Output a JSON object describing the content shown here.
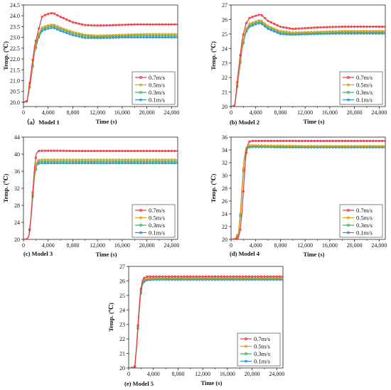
{
  "figure": {
    "series_meta": [
      {
        "name": "0.7m/s",
        "color": "#e8373d",
        "marker": "circle"
      },
      {
        "name": "0.5m/s",
        "color": "#d4a017",
        "marker": "circle"
      },
      {
        "name": "0.3m/s",
        "color": "#3fae63",
        "marker": "circle"
      },
      {
        "name": "0.1m/s",
        "color": "#2b8bd8",
        "marker": "circle"
      }
    ]
  },
  "chart_data": [
    {
      "type": "line",
      "panel_label": "（a）Model 1",
      "xlabel": "Time (s)",
      "ylabel": "Temp. (℃)",
      "xlim": [
        0,
        25000
      ],
      "ylim": [
        19.8,
        24.5
      ],
      "xticks": [
        "0",
        "4,000",
        "8,000",
        "12,000",
        "16,000",
        "20,000",
        "24,000"
      ],
      "yticks": [
        "20.0",
        "20.5",
        "21.0",
        "21.5",
        "22.0",
        "22.5",
        "23.0",
        "23.5",
        "24.0",
        "24.5"
      ],
      "legend": "bottom-right",
      "series": [
        {
          "name": "0.7m/s",
          "x": [
            0,
            600,
            1200,
            1800,
            2400,
            3000,
            3600,
            4200,
            4800,
            6000,
            8000,
            10000,
            12000,
            14000,
            16000,
            18000,
            20000,
            22000,
            24000,
            25000
          ],
          "values": [
            20.0,
            20.05,
            21.3,
            22.6,
            23.3,
            23.95,
            24.05,
            24.1,
            24.13,
            23.95,
            23.7,
            23.57,
            23.55,
            23.56,
            23.58,
            23.6,
            23.6,
            23.6,
            23.6,
            23.6
          ]
        },
        {
          "name": "0.5m/s",
          "x": [
            0,
            600,
            1200,
            1800,
            2400,
            3000,
            3600,
            4200,
            4800,
            6000,
            8000,
            10000,
            12000,
            14000,
            16000,
            18000,
            20000,
            22000,
            24000,
            25000
          ],
          "values": [
            20.0,
            20.05,
            21.1,
            22.4,
            23.1,
            23.45,
            23.52,
            23.57,
            23.6,
            23.45,
            23.25,
            23.12,
            23.08,
            23.1,
            23.12,
            23.14,
            23.15,
            23.15,
            23.15,
            23.15
          ]
        },
        {
          "name": "0.3m/s",
          "x": [
            0,
            600,
            1200,
            1800,
            2400,
            3000,
            3600,
            4200,
            4800,
            6000,
            8000,
            10000,
            12000,
            14000,
            16000,
            18000,
            20000,
            22000,
            24000,
            25000
          ],
          "values": [
            20.0,
            20.05,
            21.05,
            22.35,
            23.05,
            23.38,
            23.45,
            23.5,
            23.53,
            23.38,
            23.18,
            23.06,
            23.03,
            23.05,
            23.06,
            23.08,
            23.08,
            23.08,
            23.08,
            23.08
          ]
        },
        {
          "name": "0.1m/s",
          "x": [
            0,
            600,
            1200,
            1800,
            2400,
            3000,
            3600,
            4200,
            4800,
            6000,
            8000,
            10000,
            12000,
            14000,
            16000,
            18000,
            20000,
            22000,
            24000,
            25000
          ],
          "values": [
            20.0,
            20.05,
            21.0,
            22.3,
            22.95,
            23.3,
            23.37,
            23.42,
            23.45,
            23.3,
            23.1,
            22.98,
            22.97,
            22.98,
            23.0,
            23.0,
            23.0,
            23.0,
            23.0,
            23.0
          ]
        }
      ]
    },
    {
      "type": "line",
      "panel_label": "(b) Model 2",
      "xlabel": "Time (s)",
      "ylabel": "Temp. (℃)",
      "xlim": [
        0,
        25000
      ],
      "ylim": [
        20,
        27
      ],
      "xticks": [
        "0",
        "4,000",
        "8,000",
        "12,000",
        "16,000",
        "20,000",
        "24,000"
      ],
      "yticks": [
        "20",
        "21",
        "22",
        "23",
        "24",
        "25",
        "26",
        "27"
      ],
      "legend": "bottom-right",
      "series": [
        {
          "name": "0.7m/s",
          "x": [
            0,
            600,
            1200,
            1800,
            2400,
            3000,
            3600,
            4200,
            4800,
            6000,
            8000,
            10000,
            12000,
            14000,
            16000,
            18000,
            20000,
            22000,
            24000,
            25000
          ],
          "values": [
            20.0,
            20.05,
            22.5,
            24.6,
            25.7,
            26.1,
            26.2,
            26.28,
            26.35,
            25.9,
            25.5,
            25.35,
            25.4,
            25.45,
            25.48,
            25.5,
            25.5,
            25.5,
            25.5,
            25.5
          ]
        },
        {
          "name": "0.5m/s",
          "x": [
            0,
            600,
            1200,
            1800,
            2400,
            3000,
            3600,
            4200,
            4800,
            6000,
            8000,
            10000,
            12000,
            14000,
            16000,
            18000,
            20000,
            22000,
            24000,
            25000
          ],
          "values": [
            20.0,
            20.05,
            22.2,
            24.2,
            25.3,
            25.7,
            25.8,
            25.9,
            25.95,
            25.55,
            25.2,
            25.1,
            25.12,
            25.15,
            25.18,
            25.2,
            25.2,
            25.2,
            25.2,
            25.2
          ]
        },
        {
          "name": "0.3m/s",
          "x": [
            0,
            600,
            1200,
            1800,
            2400,
            3000,
            3600,
            4200,
            4800,
            6000,
            8000,
            10000,
            12000,
            14000,
            16000,
            18000,
            20000,
            22000,
            24000,
            25000
          ],
          "values": [
            20.0,
            20.05,
            22.1,
            24.1,
            25.2,
            25.6,
            25.7,
            25.8,
            25.85,
            25.45,
            25.1,
            25.02,
            25.05,
            25.08,
            25.1,
            25.12,
            25.12,
            25.12,
            25.12,
            25.12
          ]
        },
        {
          "name": "0.1m/s",
          "x": [
            0,
            600,
            1200,
            1800,
            2400,
            3000,
            3600,
            4200,
            4800,
            6000,
            8000,
            10000,
            12000,
            14000,
            16000,
            18000,
            20000,
            22000,
            24000,
            25000
          ],
          "values": [
            20.0,
            20.05,
            22.0,
            24.0,
            25.1,
            25.5,
            25.6,
            25.7,
            25.75,
            25.35,
            25.0,
            24.95,
            24.98,
            25.0,
            25.02,
            25.03,
            25.03,
            25.03,
            25.03,
            25.03
          ]
        }
      ]
    },
    {
      "type": "line",
      "panel_label": "(c) Model 3",
      "xlabel": "Time (s)",
      "ylabel": "Temp. (℃)",
      "xlim": [
        0,
        25000
      ],
      "ylim": [
        20,
        44
      ],
      "xticks": [
        "0",
        "4,000",
        "8,000",
        "12,000",
        "16,000",
        "20,000",
        "24,000"
      ],
      "yticks": [
        "20",
        "24",
        "28",
        "32",
        "36",
        "40",
        "44"
      ],
      "legend": "bottom-right",
      "series": [
        {
          "name": "0.7m/s",
          "x": [
            0,
            600,
            900,
            1200,
            1500,
            1800,
            2100,
            2400,
            3000,
            4000,
            6000,
            8000,
            12000,
            16000,
            20000,
            24000,
            25000
          ],
          "values": [
            20.0,
            20.0,
            21.0,
            25.0,
            31.0,
            37.0,
            40.2,
            40.7,
            40.8,
            40.8,
            40.8,
            40.75,
            40.75,
            40.75,
            40.75,
            40.75,
            40.75
          ]
        },
        {
          "name": "0.5m/s",
          "x": [
            0,
            600,
            900,
            1200,
            1500,
            1800,
            2100,
            2400,
            3000,
            4000,
            6000,
            8000,
            12000,
            16000,
            20000,
            24000,
            25000
          ],
          "values": [
            20.0,
            20.0,
            21.0,
            25.0,
            30.5,
            35.5,
            38.0,
            38.6,
            38.7,
            38.7,
            38.7,
            38.7,
            38.7,
            38.7,
            38.7,
            38.7,
            38.7
          ]
        },
        {
          "name": "0.3m/s",
          "x": [
            0,
            600,
            900,
            1200,
            1500,
            1800,
            2100,
            2400,
            3000,
            4000,
            6000,
            8000,
            12000,
            16000,
            20000,
            24000,
            25000
          ],
          "values": [
            20.0,
            20.0,
            21.0,
            24.8,
            30.2,
            35.0,
            37.6,
            38.2,
            38.3,
            38.3,
            38.3,
            38.3,
            38.3,
            38.3,
            38.3,
            38.3,
            38.3
          ]
        },
        {
          "name": "0.1m/s",
          "x": [
            0,
            600,
            900,
            1200,
            1500,
            1800,
            2100,
            2400,
            3000,
            4000,
            6000,
            8000,
            12000,
            16000,
            20000,
            24000,
            25000
          ],
          "values": [
            20.0,
            20.0,
            20.9,
            24.6,
            30.0,
            34.8,
            37.2,
            37.8,
            37.9,
            37.9,
            37.9,
            37.9,
            37.9,
            37.9,
            37.9,
            37.9,
            37.9
          ]
        }
      ]
    },
    {
      "type": "line",
      "panel_label": "(d) Model 4",
      "xlabel": "Time (s)",
      "ylabel": "Temp. (℃)",
      "xlim": [
        0,
        25000
      ],
      "ylim": [
        20,
        36
      ],
      "xticks": [
        "0",
        "4,000",
        "8,000",
        "12,000",
        "16,000",
        "20,000",
        "24,000"
      ],
      "yticks": [
        "20",
        "22",
        "24",
        "26",
        "28",
        "30",
        "32",
        "34",
        "36"
      ],
      "legend": "bottom-right",
      "series": [
        {
          "name": "0.7m/s",
          "x": [
            0,
            600,
            1200,
            1500,
            1800,
            2100,
            2400,
            2700,
            3000,
            3300,
            4000,
            6000,
            8000,
            12000,
            16000,
            20000,
            24000,
            25000
          ],
          "values": [
            20.0,
            20.0,
            20.3,
            21.5,
            24.5,
            29.0,
            33.0,
            34.8,
            35.3,
            35.4,
            35.4,
            35.4,
            35.4,
            35.4,
            35.4,
            35.4,
            35.4,
            35.4
          ]
        },
        {
          "name": "0.5m/s",
          "x": [
            0,
            600,
            1200,
            1500,
            1800,
            2100,
            2400,
            2700,
            3000,
            3300,
            4000,
            6000,
            8000,
            12000,
            16000,
            20000,
            24000,
            25000
          ],
          "values": [
            20.0,
            20.0,
            21.0,
            24.0,
            28.5,
            32.5,
            34.2,
            34.6,
            34.7,
            34.7,
            34.7,
            34.65,
            34.65,
            34.6,
            34.6,
            34.6,
            34.6,
            34.6
          ]
        },
        {
          "name": "0.3m/s",
          "x": [
            0,
            600,
            1200,
            1500,
            1800,
            2100,
            2400,
            2700,
            3000,
            3300,
            4000,
            6000,
            8000,
            12000,
            16000,
            20000,
            24000,
            25000
          ],
          "values": [
            20.0,
            20.0,
            20.9,
            23.8,
            28.2,
            32.2,
            34.0,
            34.4,
            34.5,
            34.55,
            34.55,
            34.5,
            34.5,
            34.45,
            34.45,
            34.45,
            34.45,
            34.45
          ]
        },
        {
          "name": "0.1m/s",
          "x": [
            0,
            600,
            1200,
            1500,
            1800,
            2100,
            2400,
            2700,
            3000,
            3300,
            4000,
            6000,
            8000,
            12000,
            16000,
            20000,
            24000,
            25000
          ],
          "values": [
            20.0,
            20.0,
            20.8,
            23.6,
            28.0,
            32.0,
            33.9,
            34.3,
            34.4,
            34.45,
            34.45,
            34.45,
            34.4,
            34.4,
            34.4,
            34.4,
            34.4,
            34.4
          ]
        }
      ]
    },
    {
      "type": "line",
      "panel_label": "(e) Model 5",
      "xlabel": "Time (s)",
      "ylabel": "Temp. (℃)",
      "xlim": [
        0,
        25000
      ],
      "ylim": [
        20,
        27
      ],
      "xticks": [
        "0",
        "4,000",
        "8,000",
        "12,000",
        "16,000",
        "20,000",
        "24,000"
      ],
      "yticks": [
        "20",
        "21",
        "22",
        "23",
        "24",
        "25",
        "26",
        "27"
      ],
      "legend": "bottom-right",
      "series": [
        {
          "name": "0.7m/s",
          "x": [
            0,
            600,
            1000,
            1300,
            1600,
            1900,
            2200,
            2500,
            3000,
            4000,
            6000,
            8000,
            12000,
            16000,
            20000,
            24000,
            25000
          ],
          "values": [
            20.0,
            20.0,
            20.1,
            21.6,
            23.6,
            25.2,
            26.0,
            26.2,
            26.3,
            26.3,
            26.3,
            26.3,
            26.3,
            26.3,
            26.3,
            26.3,
            26.3
          ]
        },
        {
          "name": "0.5m/s",
          "x": [
            0,
            600,
            1000,
            1300,
            1600,
            1900,
            2200,
            2500,
            3000,
            4000,
            6000,
            8000,
            12000,
            16000,
            20000,
            24000,
            25000
          ],
          "values": [
            20.0,
            20.0,
            20.1,
            21.6,
            23.5,
            25.1,
            25.9,
            26.1,
            26.18,
            26.2,
            26.2,
            26.2,
            26.2,
            26.2,
            26.2,
            26.2,
            26.2
          ]
        },
        {
          "name": "0.3m/s",
          "x": [
            0,
            600,
            1000,
            1300,
            1600,
            1900,
            2200,
            2500,
            3000,
            4000,
            6000,
            8000,
            12000,
            16000,
            20000,
            24000,
            25000
          ],
          "values": [
            20.0,
            20.0,
            20.1,
            21.5,
            23.4,
            25.0,
            25.8,
            26.05,
            26.12,
            26.15,
            26.15,
            26.15,
            26.15,
            26.15,
            26.15,
            26.15,
            26.15
          ]
        },
        {
          "name": "0.1m/s",
          "x": [
            0,
            600,
            1000,
            1300,
            1600,
            1900,
            2200,
            2500,
            3000,
            4000,
            6000,
            8000,
            12000,
            16000,
            20000,
            24000,
            25000
          ],
          "values": [
            20.0,
            20.0,
            20.1,
            21.5,
            23.3,
            24.9,
            25.7,
            25.95,
            26.05,
            26.08,
            26.08,
            26.08,
            26.08,
            26.08,
            26.08,
            26.08,
            26.08
          ]
        }
      ]
    }
  ]
}
